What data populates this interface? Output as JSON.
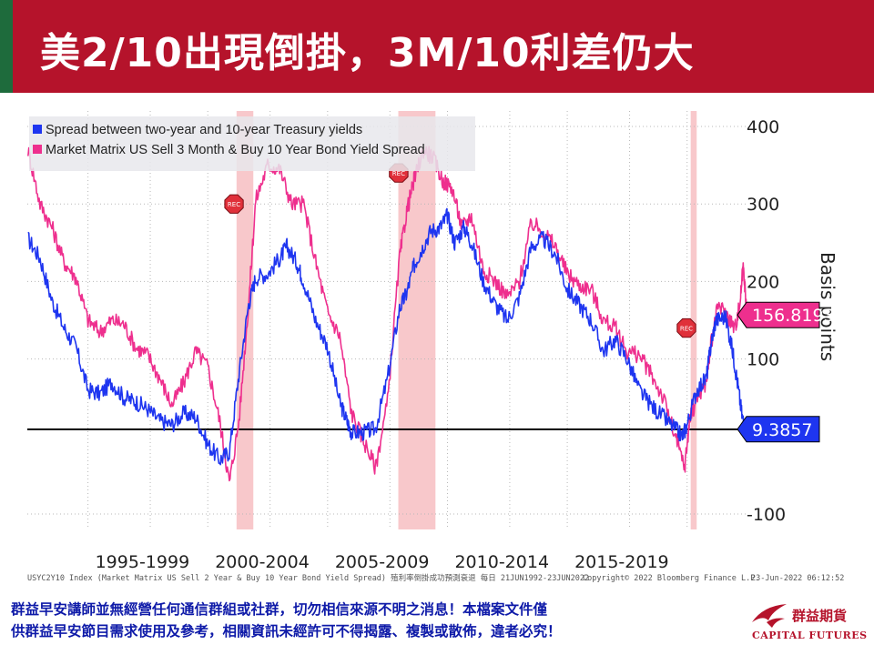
{
  "header": {
    "title": "美2/10出現倒掛，3M/10利差仍大"
  },
  "chart_data": {
    "type": "line",
    "ylabel": "Basis points",
    "ylim": [
      -120,
      420
    ],
    "yticks": [
      400,
      300,
      200,
      100,
      -100
    ],
    "xlim": [
      1992.47,
      2022.48
    ],
    "xlabels": [
      "1995-1999",
      "2000-2004",
      "2005-2009",
      "2010-2014",
      "2015-2019"
    ],
    "recessions": [
      [
        2001.2,
        2001.9
      ],
      [
        2007.95,
        2009.5
      ],
      [
        2020.15,
        2020.4
      ]
    ],
    "rec_label": "REC",
    "grid": true,
    "legend_position": "top-left",
    "series": [
      {
        "name": "Spread between two-year and 10-year Treasury yields",
        "color": "#1e35f0",
        "last_value": "9.3857",
        "x": [
          1992.5,
          1993.0,
          1993.5,
          1994.0,
          1994.5,
          1995.0,
          1995.5,
          1996.0,
          1996.5,
          1997.0,
          1997.5,
          1998.0,
          1998.5,
          1999.0,
          1999.5,
          2000.0,
          2000.5,
          2000.9,
          2001.3,
          2001.7,
          2002.0,
          2002.5,
          2003.0,
          2003.3,
          2003.7,
          2004.0,
          2004.5,
          2005.0,
          2005.5,
          2005.8,
          2006.0,
          2006.5,
          2007.0,
          2007.5,
          2008.0,
          2008.3,
          2008.6,
          2008.9,
          2009.3,
          2009.7,
          2010.0,
          2010.3,
          2010.7,
          2011.0,
          2011.5,
          2012.0,
          2012.5,
          2013.0,
          2013.5,
          2014.0,
          2014.5,
          2015.0,
          2015.5,
          2016.0,
          2016.5,
          2017.0,
          2017.5,
          2018.0,
          2018.5,
          2019.0,
          2019.5,
          2019.8,
          2020.0,
          2020.4,
          2020.8,
          2021.0,
          2021.2,
          2021.6,
          2021.9,
          2022.1,
          2022.3,
          2022.48
        ],
        "values": [
          255,
          230,
          175,
          140,
          115,
          60,
          55,
          70,
          50,
          45,
          35,
          20,
          15,
          30,
          25,
          -10,
          -30,
          -20,
          80,
          170,
          205,
          210,
          230,
          245,
          225,
          200,
          150,
          115,
          45,
          20,
          5,
          5,
          10,
          75,
          165,
          185,
          220,
          240,
          265,
          270,
          285,
          250,
          270,
          250,
          200,
          170,
          150,
          180,
          245,
          255,
          235,
          190,
          170,
          150,
          110,
          125,
          100,
          60,
          40,
          25,
          10,
          0,
          15,
          60,
          75,
          120,
          150,
          155,
          110,
          70,
          25,
          9.4
        ]
      },
      {
        "name": "Market Matrix US Sell 3 Month & Buy 10 Year Bond Yield Spread",
        "color": "#ee2f8e",
        "last_value": "156.8193",
        "x": [
          1992.5,
          1993.0,
          1993.5,
          1994.0,
          1994.5,
          1995.0,
          1995.5,
          1996.0,
          1996.5,
          1997.0,
          1997.5,
          1998.0,
          1998.5,
          1999.0,
          1999.5,
          2000.0,
          2000.5,
          2000.9,
          2001.3,
          2001.7,
          2002.0,
          2002.5,
          2003.0,
          2003.5,
          2004.0,
          2004.5,
          2005.0,
          2005.5,
          2006.0,
          2006.5,
          2007.0,
          2007.5,
          2008.0,
          2008.3,
          2008.6,
          2009.0,
          2009.4,
          2009.8,
          2010.2,
          2010.6,
          2011.0,
          2011.5,
          2012.0,
          2012.5,
          2013.0,
          2013.5,
          2014.0,
          2014.5,
          2015.0,
          2015.5,
          2016.0,
          2016.5,
          2017.0,
          2017.5,
          2018.0,
          2018.5,
          2019.0,
          2019.5,
          2019.9,
          2020.1,
          2020.4,
          2020.8,
          2021.0,
          2021.3,
          2021.7,
          2022.0,
          2022.2,
          2022.35,
          2022.48
        ],
        "values": [
          370,
          300,
          270,
          225,
          205,
          150,
          135,
          150,
          145,
          115,
          105,
          75,
          40,
          70,
          110,
          90,
          20,
          -60,
          20,
          170,
          305,
          350,
          345,
          300,
          300,
          225,
          160,
          130,
          30,
          -5,
          -40,
          45,
          230,
          290,
          330,
          370,
          360,
          330,
          320,
          270,
          285,
          215,
          200,
          180,
          200,
          275,
          265,
          245,
          210,
          195,
          190,
          150,
          140,
          110,
          105,
          80,
          50,
          0,
          -40,
          20,
          50,
          70,
          120,
          170,
          155,
          140,
          170,
          225,
          156.8
        ]
      }
    ]
  },
  "footer": {
    "source": "USYC2Y10 Index (Market Matrix US Sell 2 Year & Buy 10 Year Bond Yield Spread) 殖利率倒掛成功預測衰退  每日 21JUN1992-23JUN2022",
    "copyright": "Copyright© 2022 Bloomberg Finance L.P.",
    "timestamp": "23-Jun-2022 06:12:52",
    "disclaimer_line1": "群益早安講師並無經營任何通信群組或社群，切勿相信來源不明之消息！本檔案文件僅",
    "disclaimer_line2": "供群益早安節目需求使用及參考，相關資訊未經許可不得揭露、複製或散佈，違者必究！"
  },
  "logo": {
    "cn": "群益期貨",
    "en": "CAPITAL FUTURES",
    "color": "#b5132b"
  }
}
